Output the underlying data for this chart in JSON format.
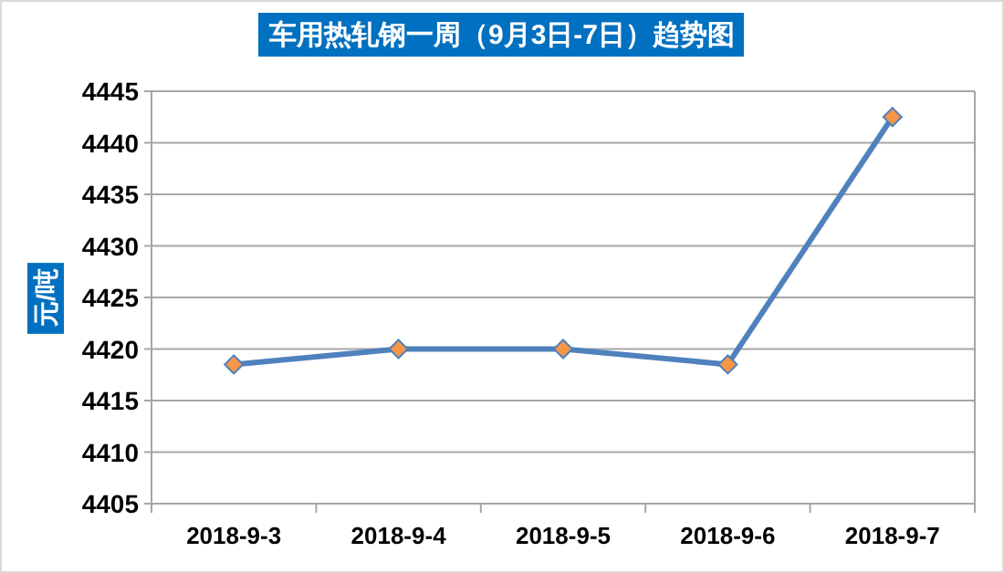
{
  "chart_data": {
    "type": "line",
    "title": "车用热轧钢一周（9月3日-7日）趋势图",
    "ylabel": "元/吨",
    "categories": [
      "2018-9-3",
      "2018-9-4",
      "2018-9-5",
      "2018-9-6",
      "2018-9-7"
    ],
    "series": [
      {
        "color": "#4f81bd",
        "values": [
          4418.5,
          4420,
          4420,
          4418.5,
          4442.5
        ]
      }
    ],
    "ylim": [
      4405,
      4445
    ],
    "yticks": [
      4405,
      4410,
      4415,
      4420,
      4425,
      4430,
      4435,
      4440,
      4445
    ],
    "grid": "y",
    "marker": "diamond",
    "line_style": "solid"
  }
}
